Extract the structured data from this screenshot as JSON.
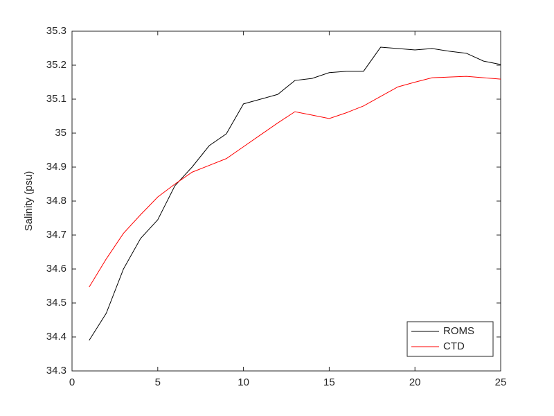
{
  "chart_data": {
    "type": "line",
    "ylabel": "Salinity (psu)",
    "x": [
      1,
      2,
      3,
      4,
      5,
      6,
      7,
      8,
      9,
      10,
      11,
      12,
      13,
      14,
      15,
      16,
      17,
      18,
      19,
      20,
      21,
      22,
      23,
      24,
      25
    ],
    "series": [
      {
        "name": "ROMS",
        "color": "#000000",
        "values": [
          34.39,
          34.47,
          34.6,
          34.69,
          34.745,
          34.845,
          34.9,
          34.963,
          34.998,
          35.086,
          35.1,
          35.114,
          35.155,
          35.161,
          35.178,
          35.182,
          35.182,
          35.253,
          35.249,
          35.245,
          35.249,
          35.241,
          35.235,
          35.212,
          35.202
        ]
      },
      {
        "name": "CTD",
        "color": "#ff0000",
        "values": [
          34.547,
          34.63,
          34.705,
          34.76,
          34.812,
          34.85,
          34.885,
          34.905,
          34.925,
          34.96,
          34.995,
          35.03,
          35.063,
          35.053,
          35.043,
          35.06,
          35.08,
          35.108,
          35.136,
          35.15,
          35.163,
          35.165,
          35.167,
          35.163,
          35.159
        ]
      }
    ],
    "xlim": [
      0,
      25
    ],
    "xticks": [
      0,
      5,
      10,
      15,
      20,
      25
    ],
    "ylim": [
      34.3,
      35.3
    ],
    "yticks": [
      34.3,
      34.4,
      34.5,
      34.6,
      34.7,
      34.8,
      34.9,
      35,
      35.1,
      35.2,
      35.3
    ],
    "grid": false,
    "legend": "southeast"
  }
}
